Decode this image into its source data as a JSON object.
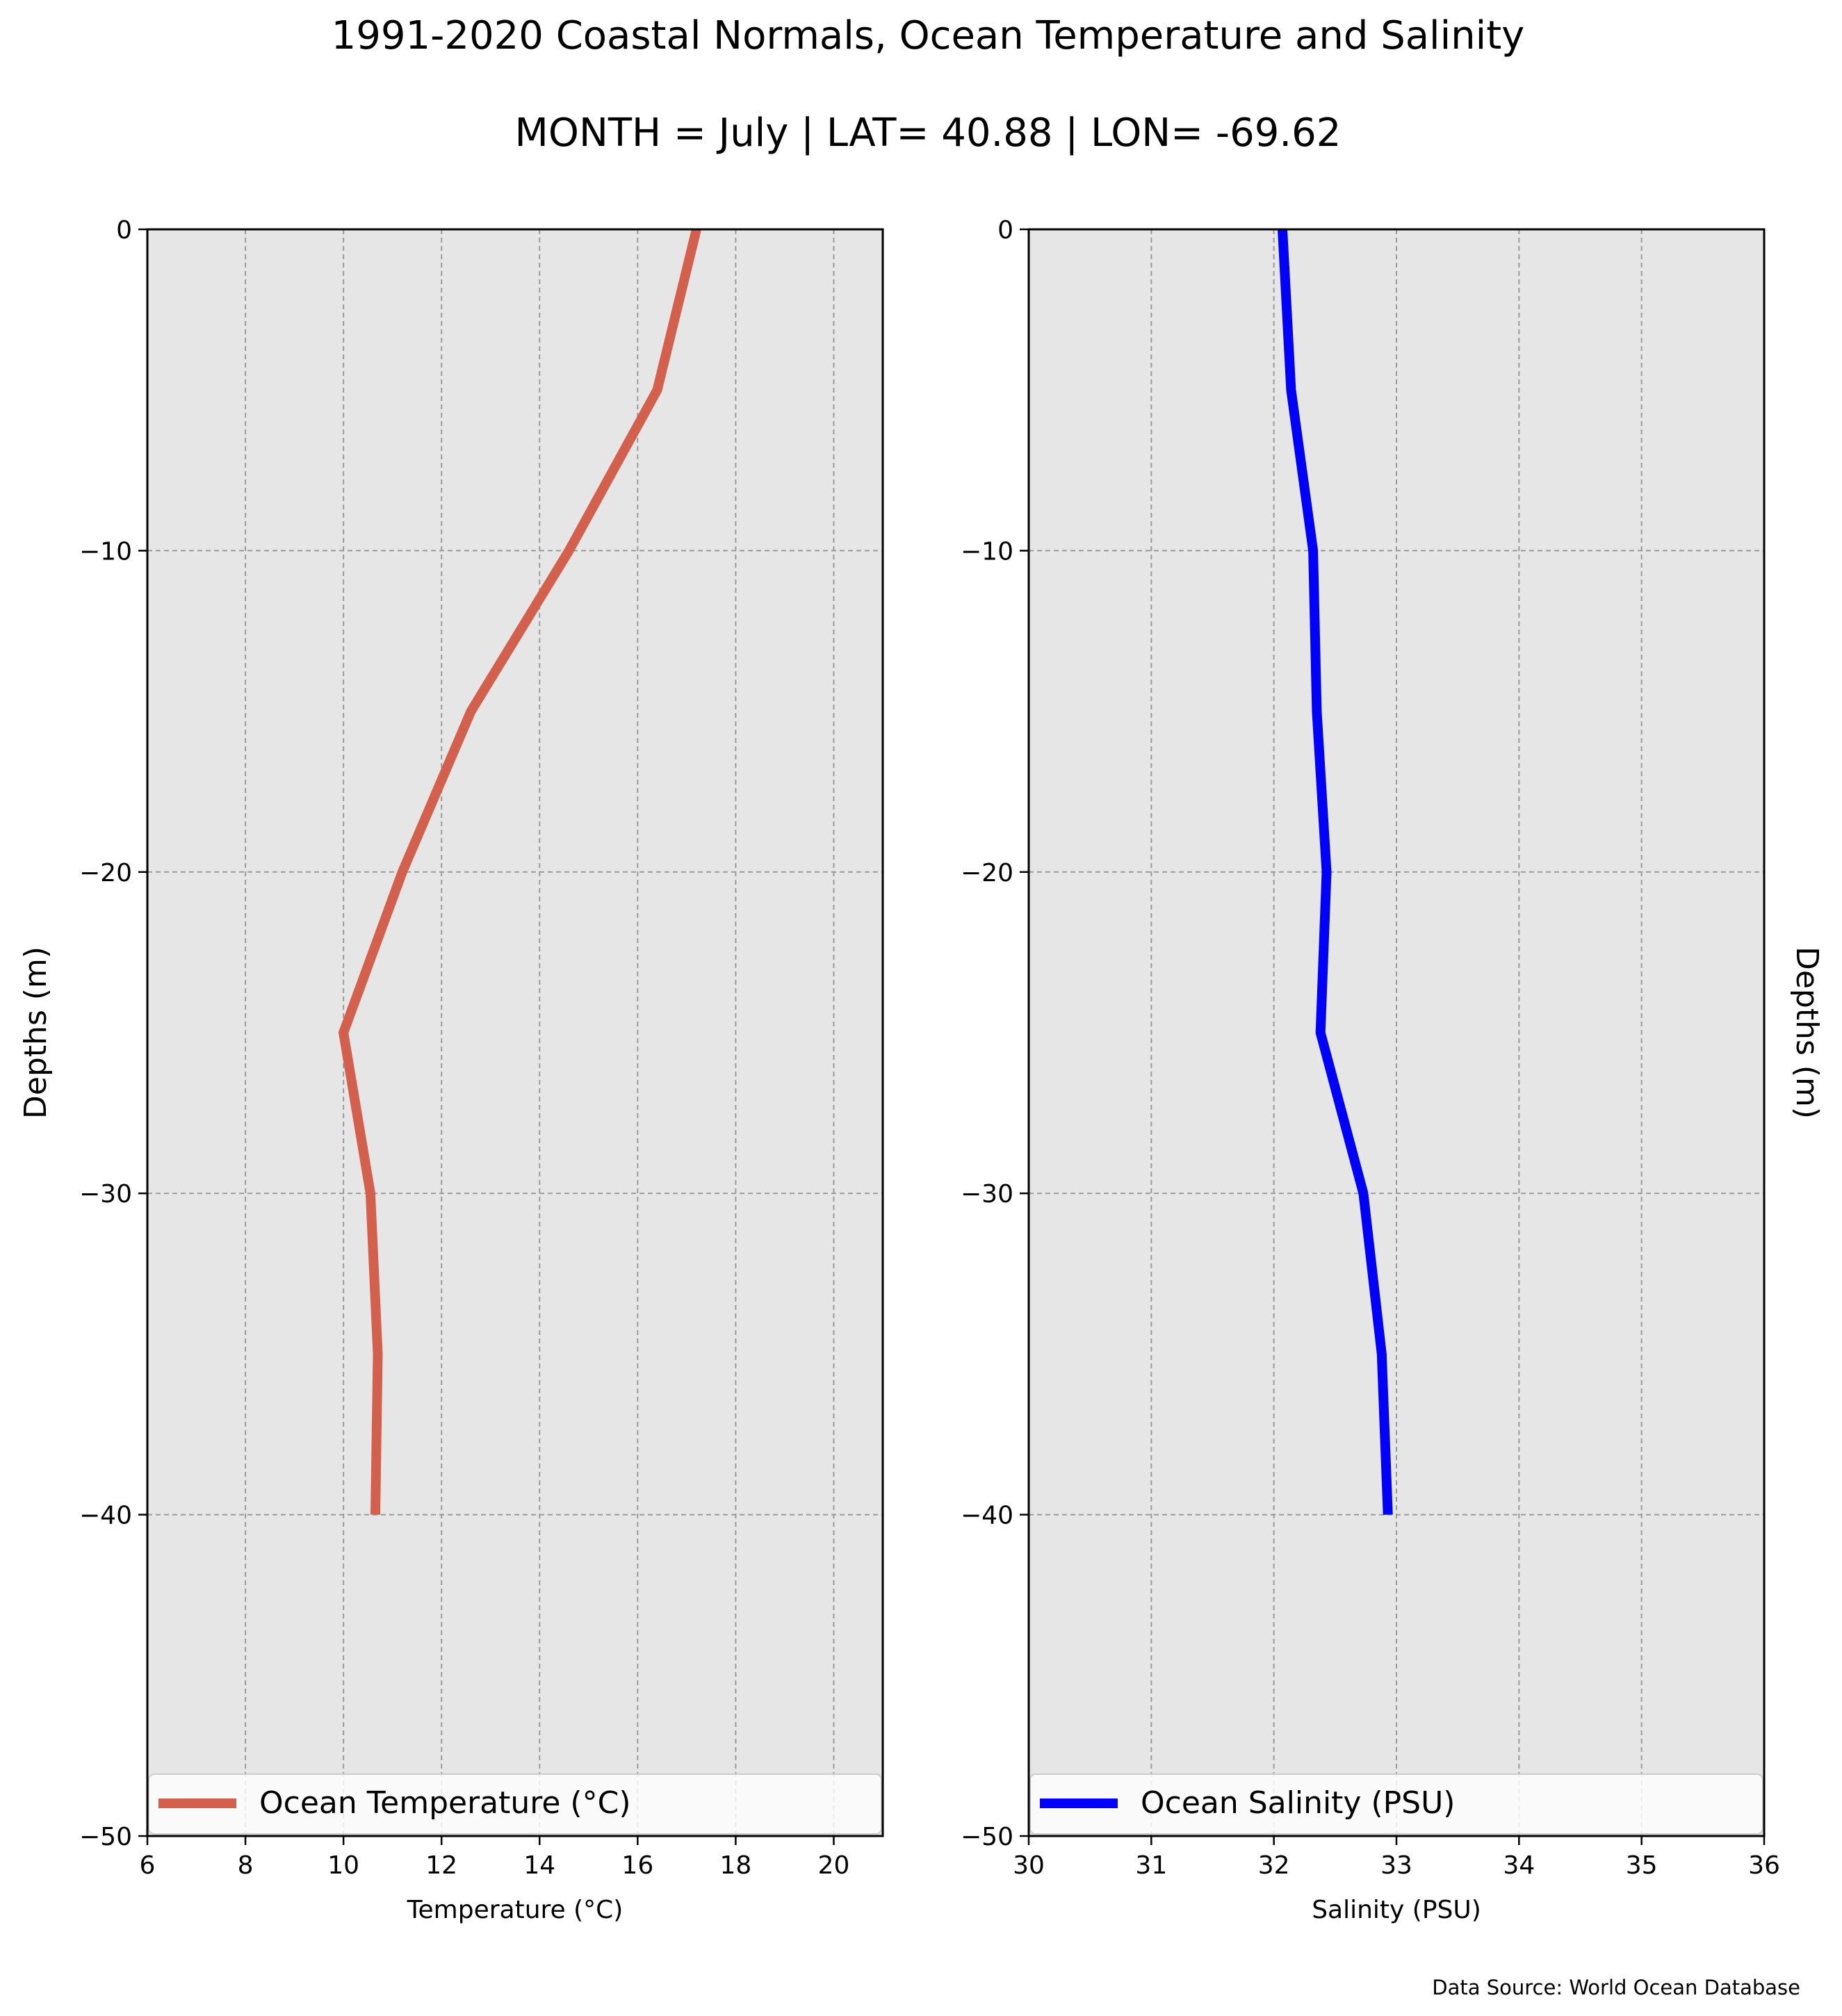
{
  "figure": {
    "title": "1991-2020 Coastal Normals, Ocean Temperature and Salinity",
    "subtitle": "MONTH = July | LAT= 40.88 | LON= -69.62",
    "source": "Data Source: World Ocean Database"
  },
  "chart_data": [
    {
      "type": "line",
      "xlabel": "Temperature ($^\\circ$C)",
      "xlabel_display": "Temperature (°C)",
      "ylabel": "Depths (m)",
      "xlim": [
        6,
        21
      ],
      "ylim": [
        -50,
        0
      ],
      "xticks": [
        "6",
        "8",
        "10",
        "12",
        "14",
        "16",
        "18",
        "20"
      ],
      "yticks": [
        "0",
        "−10",
        "−20",
        "−30",
        "−40",
        "−50"
      ],
      "grid": true,
      "legend_position": "lower-center",
      "series": [
        {
          "name": "Ocean Temperature (°C)",
          "color": "#d35f4d",
          "depth": [
            0,
            -5,
            -10,
            -15,
            -20,
            -25,
            -30,
            -35,
            -40
          ],
          "values": [
            17.2,
            16.4,
            14.6,
            12.6,
            11.2,
            10.0,
            10.55,
            10.7,
            10.65
          ]
        }
      ]
    },
    {
      "type": "line",
      "xlabel": "Salinity (PSU)",
      "ylabel": "Depths (m)",
      "xlim": [
        30,
        36
      ],
      "ylim": [
        -50,
        0
      ],
      "xticks": [
        "30",
        "31",
        "32",
        "33",
        "34",
        "35",
        "36"
      ],
      "yticks": [
        "0",
        "−10",
        "−20",
        "−30",
        "−40",
        "−50"
      ],
      "grid": true,
      "legend_position": "lower-center",
      "series": [
        {
          "name": "Ocean Salinity (PSU)",
          "color": "#0000ff",
          "depth": [
            0,
            -5,
            -10,
            -15,
            -20,
            -25,
            -30,
            -35,
            -40
          ],
          "values": [
            32.07,
            32.14,
            32.32,
            32.35,
            32.43,
            32.38,
            32.73,
            32.88,
            32.93
          ]
        }
      ]
    }
  ]
}
